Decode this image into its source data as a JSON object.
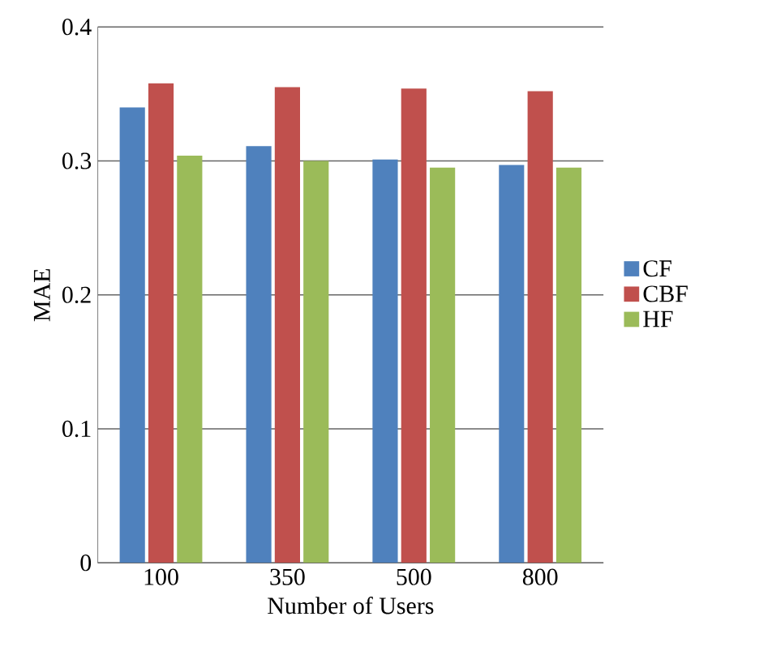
{
  "chart_data": {
    "type": "bar",
    "xlabel": "Number of Users",
    "ylabel": "MAE",
    "categories": [
      "100",
      "350",
      "500",
      "800"
    ],
    "series": [
      {
        "name": "CF",
        "color": "#4f81bd",
        "values": [
          0.34,
          0.311,
          0.301,
          0.297
        ]
      },
      {
        "name": "CBF",
        "color": "#c0504d",
        "values": [
          0.358,
          0.355,
          0.354,
          0.352
        ]
      },
      {
        "name": "HF",
        "color": "#9bbb59",
        "values": [
          0.304,
          0.3,
          0.295,
          0.295
        ]
      }
    ],
    "ylim": [
      0,
      0.4
    ],
    "yticks": [
      0,
      0.1,
      0.2,
      0.3,
      0.4
    ],
    "grid": "y",
    "legend": "right"
  }
}
